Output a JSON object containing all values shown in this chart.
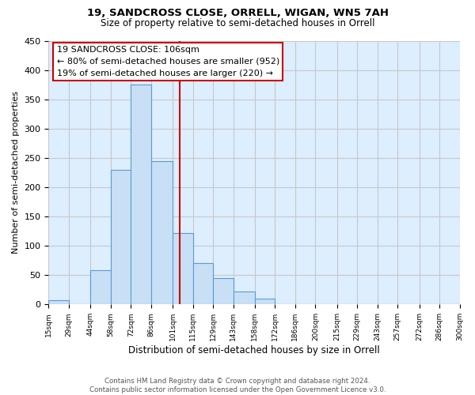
{
  "title1": "19, SANDCROSS CLOSE, ORRELL, WIGAN, WN5 7AH",
  "title2": "Size of property relative to semi-detached houses in Orrell",
  "xlabel": "Distribution of semi-detached houses by size in Orrell",
  "ylabel": "Number of semi-detached properties",
  "bin_labels": [
    "15sqm",
    "29sqm",
    "44sqm",
    "58sqm",
    "72sqm",
    "86sqm",
    "101sqm",
    "115sqm",
    "129sqm",
    "143sqm",
    "158sqm",
    "172sqm",
    "186sqm",
    "200sqm",
    "215sqm",
    "229sqm",
    "243sqm",
    "257sqm",
    "272sqm",
    "286sqm",
    "300sqm"
  ],
  "bin_edges": [
    15,
    29,
    44,
    58,
    72,
    86,
    101,
    115,
    129,
    143,
    158,
    172,
    186,
    200,
    215,
    229,
    243,
    257,
    272,
    286,
    300
  ],
  "bar_heights": [
    7,
    0,
    58,
    230,
    375,
    245,
    122,
    70,
    45,
    22,
    10,
    0,
    0,
    0,
    0,
    0,
    0,
    0,
    0,
    0
  ],
  "bar_color": "#c8dff5",
  "bar_edge_color": "#5b9bd5",
  "property_value": 106,
  "vline_color": "#cc0000",
  "annotation_line1": "19 SANDCROSS CLOSE: 106sqm",
  "annotation_line2": "← 80% of semi-detached houses are smaller (952)",
  "annotation_line3": "19% of semi-detached houses are larger (220) →",
  "annotation_box_color": "#ffffff",
  "annotation_box_edge_color": "#cc0000",
  "ylim": [
    0,
    450
  ],
  "yticks": [
    0,
    50,
    100,
    150,
    200,
    250,
    300,
    350,
    400,
    450
  ],
  "grid_color": "#c8c8c8",
  "footer_text": "Contains HM Land Registry data © Crown copyright and database right 2024.\nContains public sector information licensed under the Open Government Licence v3.0.",
  "fig_bg_color": "#ffffff",
  "ax_bg_color": "#ddeeff"
}
